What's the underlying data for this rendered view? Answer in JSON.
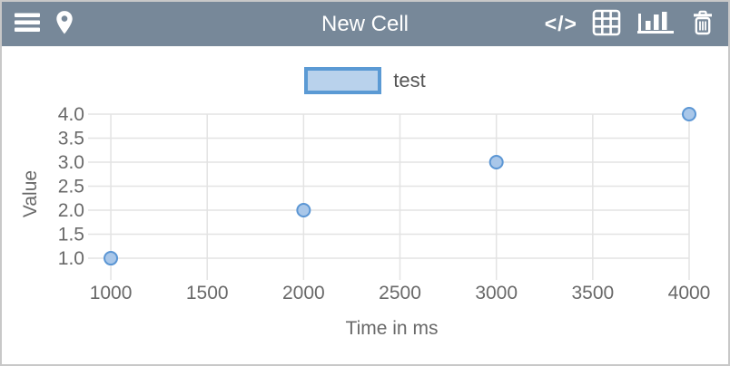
{
  "header": {
    "title": "New Cell",
    "code_glyph": "</>",
    "icons": [
      "menu-icon",
      "map-pin-icon",
      "code-icon",
      "table-icon",
      "bar-chart-icon",
      "trash-icon"
    ]
  },
  "legend": {
    "label": "test",
    "swatch_border": "#5b9ad4",
    "swatch_fill": "#b9d2ec"
  },
  "chart_data": {
    "type": "scatter",
    "title": "",
    "xlabel": "Time in ms",
    "ylabel": "Value",
    "series": [
      {
        "name": "test",
        "x": [
          1000,
          2000,
          3000,
          4000
        ],
        "y": [
          1.0,
          2.0,
          3.0,
          4.0
        ]
      }
    ],
    "x_ticks": [
      {
        "value": 1000,
        "label": "1000"
      },
      {
        "value": 1500,
        "label": "1500"
      },
      {
        "value": 2000,
        "label": "2000"
      },
      {
        "value": 2500,
        "label": "2500"
      },
      {
        "value": 3000,
        "label": "3000"
      },
      {
        "value": 3500,
        "label": "3500"
      },
      {
        "value": 4000,
        "label": "4000"
      }
    ],
    "y_ticks": [
      {
        "value": 1.0,
        "label": "1.0"
      },
      {
        "value": 1.5,
        "label": "1.5"
      },
      {
        "value": 2.0,
        "label": "2.0"
      },
      {
        "value": 2.5,
        "label": "2.5"
      },
      {
        "value": 3.0,
        "label": "3.0"
      },
      {
        "value": 3.5,
        "label": "3.5"
      },
      {
        "value": 4.0,
        "label": "4.0"
      }
    ],
    "xlim": [
      915,
      4000
    ],
    "ylim": [
      0.68,
      4.0
    ],
    "grid": true,
    "legend_position": "top-center",
    "marker_stroke": "#5b96d4",
    "marker_fill": "#a9c7e9"
  },
  "colors": {
    "header_bg": "#778899",
    "header_fg": "#ffffff",
    "card_border": "#c8c8c8",
    "grid": "#e3e3e3",
    "axis_text": "#696969"
  }
}
